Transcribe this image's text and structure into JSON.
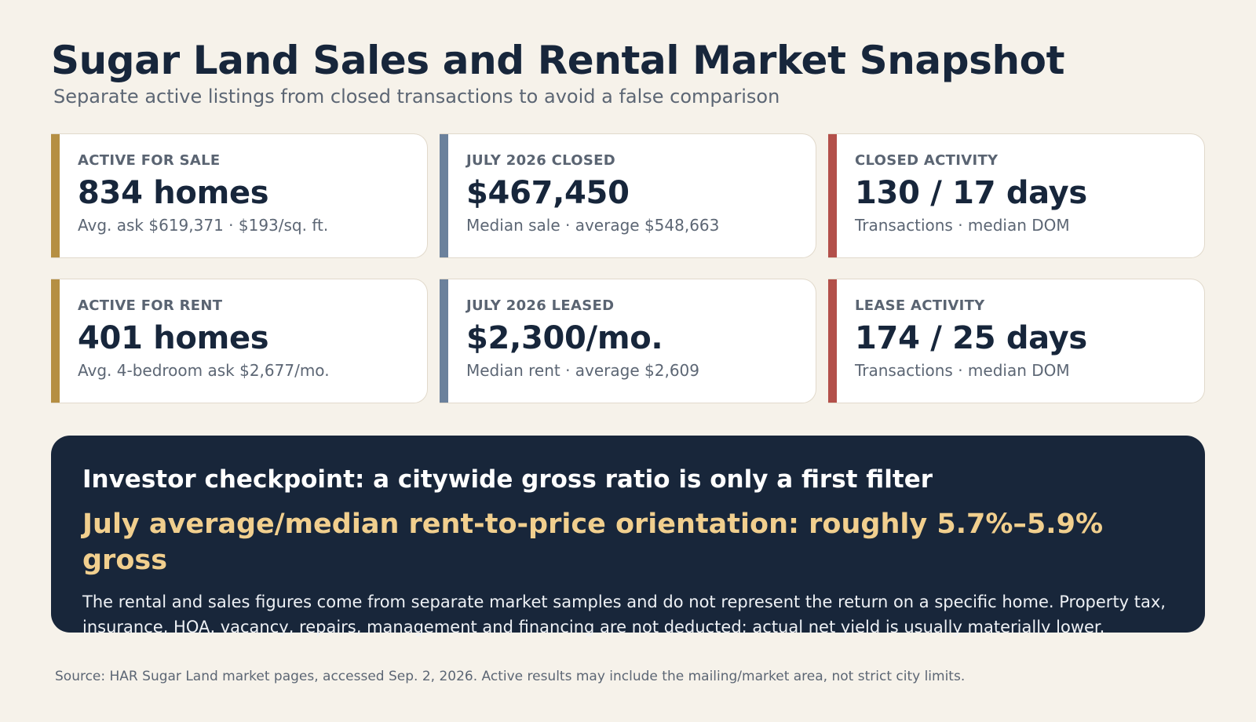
{
  "header": {
    "title": "Sugar Land Sales and Rental Market Snapshot",
    "subtitle": "Separate active listings from closed transactions to avoid a false comparison"
  },
  "cards": [
    {
      "label": "ACTIVE FOR SALE",
      "value": "834 homes",
      "sub": "Avg. ask $619,371 · $193/sq. ft.",
      "accent": "#b58f43"
    },
    {
      "label": "JULY 2026 CLOSED",
      "value": "$467,450",
      "sub": "Median sale · average $548,663",
      "accent": "#6b819c"
    },
    {
      "label": "CLOSED ACTIVITY",
      "value": "130 / 17 days",
      "sub": "Transactions · median DOM",
      "accent": "#b3504a"
    },
    {
      "label": "ACTIVE FOR RENT",
      "value": "401 homes",
      "sub": "Avg. 4-bedroom ask $2,677/mo.",
      "accent": "#b58f43"
    },
    {
      "label": "JULY 2026 LEASED",
      "value": "$2,300/mo.",
      "sub": "Median rent · average $2,609",
      "accent": "#6b819c"
    },
    {
      "label": "LEASE ACTIVITY",
      "value": "174 / 25 days",
      "sub": "Transactions · median DOM",
      "accent": "#b3504a"
    }
  ],
  "panel": {
    "heading": "Investor checkpoint: a citywide gross ratio is only a first filter",
    "highlight": "July average/median rent-to-price orientation: roughly 5.7%–5.9% gross",
    "body": "The rental and sales figures come from separate market samples and do not represent the return on a specific home. Property tax, insurance, HOA, vacancy, repairs, management and financing are not deducted; actual net yield is usually materially lower."
  },
  "footer": {
    "source": "Source: HAR Sugar Land market pages, accessed Sep. 2, 2026. Active results may include the mailing/market area, not strict city limits."
  },
  "colors": {
    "background": "#f6f2ea",
    "navy": "#18263a",
    "gold": "#b58f43",
    "slate": "#6b819c",
    "red": "#b3504a",
    "highlight": "#f1cf8e"
  }
}
